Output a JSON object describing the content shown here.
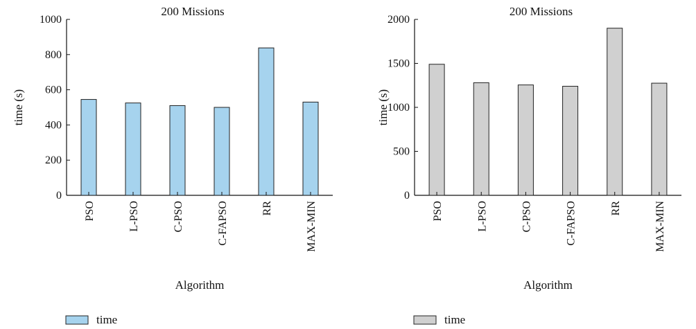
{
  "chart_data": [
    {
      "type": "bar",
      "title": "200 Missions",
      "xlabel": "Algorithm",
      "ylabel": "time (s)",
      "categories": [
        "PSO",
        "L-PSO",
        "C-PSO",
        "C-FAPSO",
        "RR",
        "MAX-MIN"
      ],
      "series": [
        {
          "name": "time",
          "values": [
            545,
            525,
            510,
            500,
            838,
            530
          ],
          "color": "#a6d3ee"
        }
      ],
      "ylim": [
        0,
        1000
      ],
      "yticks": [
        0,
        200,
        400,
        600,
        800,
        1000
      ],
      "grid": false,
      "legend": "bottom-left"
    },
    {
      "type": "bar",
      "title": "200 Missions",
      "xlabel": "Algorithm",
      "ylabel": "time (s)",
      "categories": [
        "PSO",
        "L-PSO",
        "C-PSO",
        "C-FAPSO",
        "RR",
        "MAX-MIN"
      ],
      "series": [
        {
          "name": "time",
          "values": [
            1490,
            1280,
            1255,
            1240,
            1900,
            1275
          ],
          "color": "#d0d0d0"
        }
      ],
      "ylim": [
        0,
        2000
      ],
      "yticks": [
        0,
        500,
        1000,
        1500,
        2000
      ],
      "grid": false,
      "legend": "bottom-left"
    }
  ]
}
